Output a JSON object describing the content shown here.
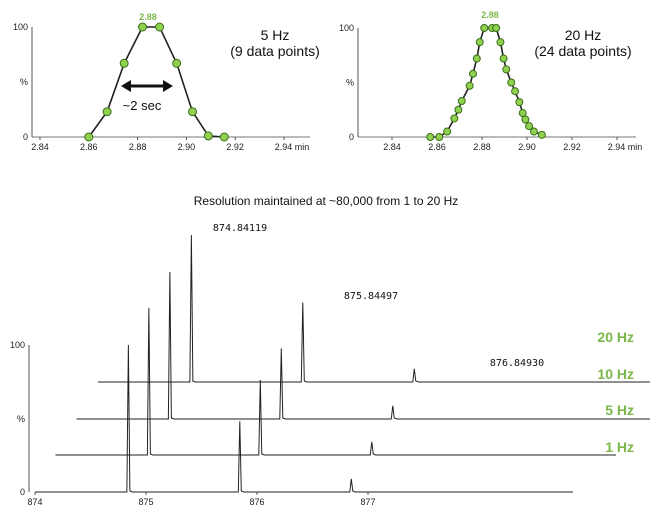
{
  "chart_data": [
    {
      "type": "scatter",
      "title": "5 Hz",
      "subtitle": "(9 data points)",
      "peak_label": "2.88",
      "annotation": "~2 sec",
      "xlabel": "min",
      "ylabel": "%",
      "xlim": [
        2.835,
        2.945
      ],
      "ylim": [
        0,
        100
      ],
      "xticks": [
        "2.84",
        "2.86",
        "2.88",
        "2.90",
        "2.92",
        "2.94 min"
      ],
      "yticks": [
        "0",
        "%",
        "100"
      ],
      "x": [
        2.86,
        2.8675,
        2.8745,
        2.882,
        2.889,
        2.896,
        2.9025,
        2.909,
        2.9155
      ],
      "y": [
        0,
        23,
        67,
        100,
        100,
        67,
        23,
        1,
        0
      ]
    },
    {
      "type": "scatter",
      "title": "20 Hz",
      "subtitle": "(24 data points)",
      "peak_label": "2.88",
      "xlabel": "min",
      "ylabel": "%",
      "xlim": [
        2.825,
        2.945
      ],
      "ylim": [
        0,
        100
      ],
      "xticks": [
        "2.84",
        "2.86",
        "2.88",
        "2.90",
        "2.92",
        "2.94 min"
      ],
      "yticks": [
        "0",
        "%",
        "100"
      ],
      "x": [
        2.857,
        2.861,
        2.8645,
        2.8677,
        2.8695,
        2.871,
        2.8745,
        2.876,
        2.8777,
        2.879,
        2.881,
        2.8845,
        2.8863,
        2.8882,
        2.8896,
        2.8908,
        2.893,
        2.8947,
        2.8966,
        2.8981,
        2.8993,
        2.9009,
        2.9031,
        2.9066
      ],
      "y": [
        0,
        0,
        5,
        17,
        25,
        33,
        47,
        58,
        72,
        87,
        100,
        100,
        100,
        87,
        72,
        62,
        50,
        42,
        32,
        22,
        16,
        10,
        5,
        2
      ]
    },
    {
      "type": "line",
      "title": "Resolution maintained at ~80,000 from 1 to 20 Hz",
      "xlim": [
        873.98,
        877.6
      ],
      "ylim": [
        0,
        100
      ],
      "xticks": [
        "874",
        "875",
        "876",
        "877"
      ],
      "yticks": [
        "0",
        "%",
        "100"
      ],
      "peak_labels": [
        "874.84119",
        "875.84497",
        "876.84930"
      ],
      "series": [
        {
          "name": "1 Hz",
          "peaks_mz": [
            874.84119,
            875.84497,
            876.8493
          ],
          "intensity": [
            100,
            48,
            9
          ]
        },
        {
          "name": "5 Hz",
          "peaks_mz": [
            874.84119,
            875.84497,
            876.8493
          ],
          "intensity": [
            100,
            51,
            9
          ]
        },
        {
          "name": "10 Hz",
          "peaks_mz": [
            874.84119,
            875.84497,
            876.8493
          ],
          "intensity": [
            100,
            48,
            9
          ]
        },
        {
          "name": "20 Hz",
          "peaks_mz": [
            874.84119,
            875.84497,
            876.8493
          ],
          "intensity": [
            100,
            54,
            9
          ]
        }
      ]
    }
  ],
  "colors": {
    "accent": "#7ab648",
    "point_stroke": "#3a6e1a",
    "line": "#222222"
  }
}
